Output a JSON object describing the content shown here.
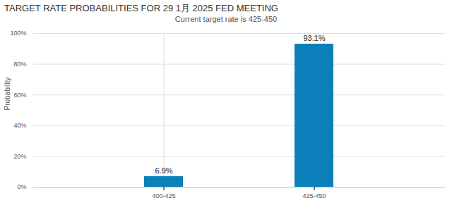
{
  "chart_data": {
    "type": "bar",
    "title": "TARGET RATE PROBABILITIES FOR 29 1月 2025 FED MEETING",
    "subtitle": "Current target rate is 425-450",
    "y_label": "Probability",
    "categories": [
      "400-425",
      "425-450"
    ],
    "values": [
      6.9,
      93.1
    ],
    "value_labels": [
      "6.9%",
      "93.1%"
    ],
    "data_labels": true,
    "color": "#0b80ba",
    "ylim": [
      0,
      100
    ],
    "yticks": [
      {
        "value": 0,
        "label": "0%"
      },
      {
        "value": 20,
        "label": "20%"
      },
      {
        "value": 40,
        "label": "40%"
      },
      {
        "value": 60,
        "label": "60%"
      },
      {
        "value": 80,
        "label": "80%"
      },
      {
        "value": 100,
        "label": "100%"
      }
    ],
    "grid": true
  }
}
